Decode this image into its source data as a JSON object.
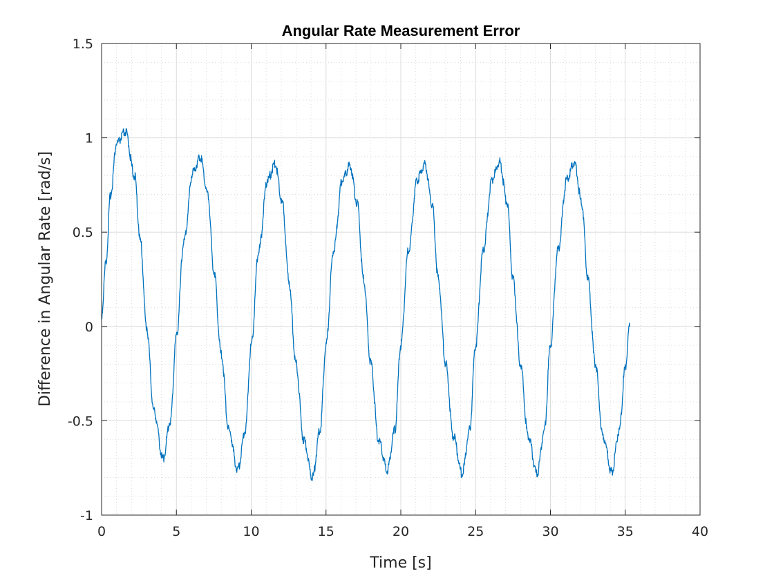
{
  "chart_data": {
    "type": "line",
    "title": "Angular Rate Measurement Error",
    "xlabel": "Time [s]",
    "ylabel": "Difference in Angular Rate [rad/s]",
    "xlim": [
      0,
      40
    ],
    "ylim": [
      -1,
      1.5
    ],
    "x_ticks": [
      0,
      5,
      10,
      15,
      20,
      25,
      30,
      35,
      40
    ],
    "y_ticks": [
      -1,
      -0.5,
      0,
      0.5,
      1,
      1.5
    ],
    "x_tick_labels": [
      "0",
      "5",
      "10",
      "15",
      "20",
      "25",
      "30",
      "35",
      "40"
    ],
    "y_tick_labels": [
      "-1",
      "-0.5",
      "0",
      "0.5",
      "1",
      "1.5"
    ],
    "grid": true,
    "minor_grid": true,
    "line_color": "#0072BD",
    "series": [
      {
        "x": [
          0,
          0.3,
          0.6,
          1.0,
          1.6,
          2.2,
          2.6,
          3.0,
          3.5,
          4.1,
          4.6,
          5.0,
          5.5,
          6.1,
          6.6,
          7.1,
          7.5,
          8.0,
          8.5,
          9.1,
          9.6,
          10.0,
          10.5,
          11.1,
          11.6,
          12.1,
          12.5,
          13.0,
          13.5,
          14.1,
          14.6,
          15.0,
          15.5,
          16.1,
          16.6,
          17.1,
          17.5,
          18.0,
          18.5,
          19.1,
          19.6,
          20.0,
          20.5,
          21.1,
          21.6,
          22.1,
          22.5,
          23.0,
          23.5,
          24.1,
          24.6,
          25.0,
          25.5,
          26.1,
          26.6,
          27.1,
          27.5,
          28.0,
          28.5,
          29.1,
          29.6,
          30.0,
          30.5,
          31.1,
          31.6,
          32.1,
          32.5,
          33.0,
          33.5,
          34.1,
          34.6,
          35.0,
          35.3
        ],
        "y": [
          0.06,
          0.35,
          0.7,
          0.97,
          1.03,
          0.8,
          0.45,
          0.0,
          -0.45,
          -0.7,
          -0.5,
          -0.05,
          0.45,
          0.82,
          0.9,
          0.7,
          0.3,
          -0.15,
          -0.55,
          -0.76,
          -0.55,
          -0.1,
          0.4,
          0.78,
          0.86,
          0.65,
          0.25,
          -0.2,
          -0.6,
          -0.8,
          -0.55,
          -0.1,
          0.4,
          0.78,
          0.85,
          0.65,
          0.25,
          -0.2,
          -0.6,
          -0.76,
          -0.55,
          -0.1,
          0.4,
          0.78,
          0.86,
          0.65,
          0.25,
          -0.2,
          -0.58,
          -0.78,
          -0.55,
          -0.1,
          0.4,
          0.78,
          0.87,
          0.66,
          0.25,
          -0.2,
          -0.58,
          -0.78,
          -0.55,
          -0.1,
          0.4,
          0.78,
          0.87,
          0.65,
          0.25,
          -0.2,
          -0.58,
          -0.77,
          -0.55,
          -0.22,
          0.0
        ]
      }
    ]
  }
}
